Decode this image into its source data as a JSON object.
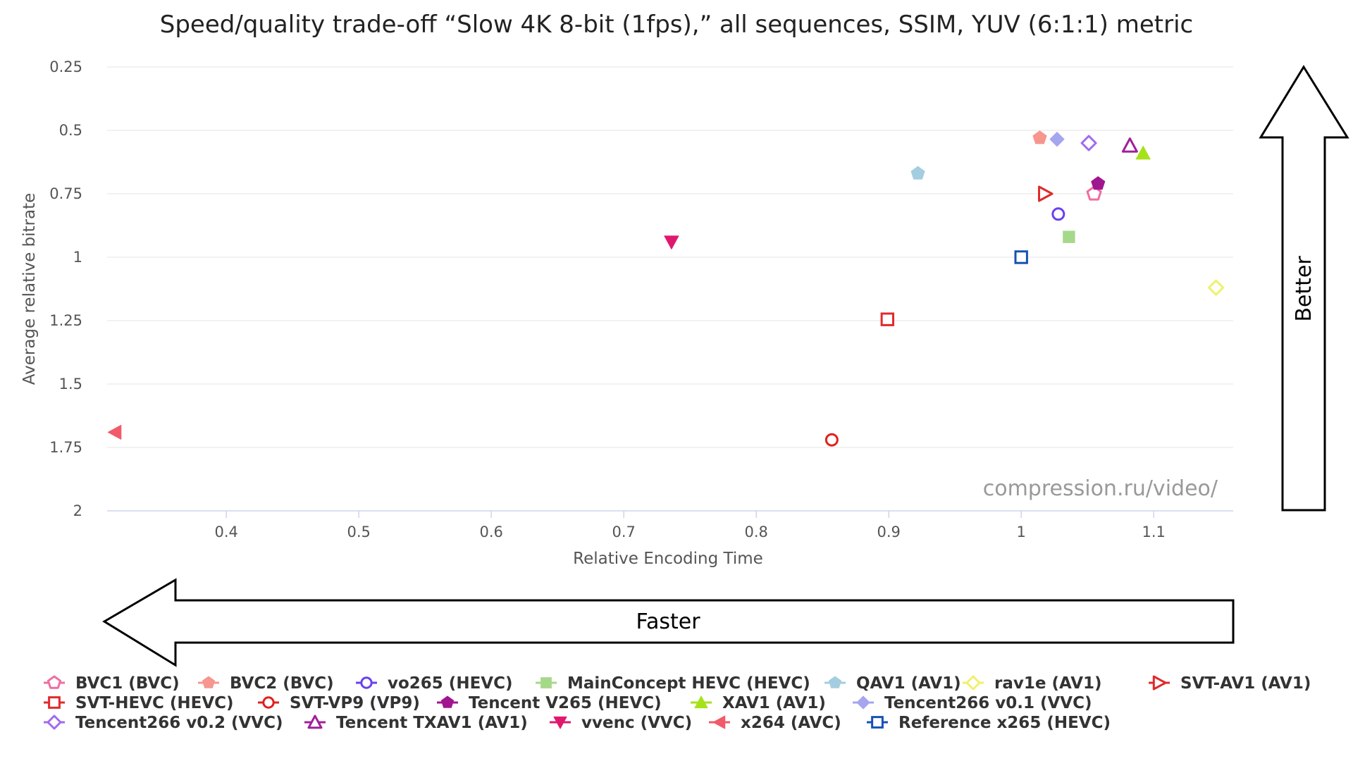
{
  "chart_data": {
    "type": "scatter",
    "title": "Speed/quality trade-off “Slow 4K 8-bit (1fps),” all sequences, SSIM, YUV (6:1:1) metric",
    "xlabel": "Relative Encoding Time",
    "ylabel": "Average relative bitrate",
    "xlim": [
      0.31,
      1.16
    ],
    "ylim": [
      0.25,
      2.0
    ],
    "y_reversed": true,
    "xticks": [
      "0.4",
      "0.5",
      "0.6",
      "0.7",
      "0.8",
      "0.9",
      "1",
      "1.1"
    ],
    "yticks": [
      "0.25",
      "0.5",
      "0.75",
      "1",
      "1.25",
      "1.5",
      "1.75",
      "2"
    ],
    "grid": true,
    "legend_position": "bottom",
    "watermark": "compression.ru/video/",
    "series": [
      {
        "name": "BVC1 (BVC)",
        "color": "#f06ea0",
        "marker": "pentagon",
        "filled": false,
        "x": 1.055,
        "y": 0.75
      },
      {
        "name": "BVC2 (BVC)",
        "color": "#f7958f",
        "marker": "pentagon",
        "filled": true,
        "x": 1.014,
        "y": 0.53
      },
      {
        "name": "vo265 (HEVC)",
        "color": "#6a3ff0",
        "marker": "circle",
        "filled": false,
        "x": 1.028,
        "y": 0.83
      },
      {
        "name": "MainConcept HEVC (HEVC)",
        "color": "#a6d88a",
        "marker": "square",
        "filled": true,
        "x": 1.036,
        "y": 0.92
      },
      {
        "name": "QAV1 (AV1)",
        "color": "#a4cde0",
        "marker": "pentagon",
        "filled": true,
        "x": 0.922,
        "y": 0.67
      },
      {
        "name": "rav1e (AV1)",
        "color": "#f1f06a",
        "marker": "diamond",
        "filled": false,
        "x": 1.147,
        "y": 1.12
      },
      {
        "name": "SVT-AV1 (AV1)",
        "color": "#e02b2b",
        "marker": "triangle-right",
        "filled": false,
        "x": 1.018,
        "y": 0.75
      },
      {
        "name": "SVT-HEVC (HEVC)",
        "color": "#e02b2b",
        "marker": "square",
        "filled": false,
        "x": 0.899,
        "y": 1.245
      },
      {
        "name": "SVT-VP9 (VP9)",
        "color": "#e0201f",
        "marker": "circle",
        "filled": false,
        "x": 0.857,
        "y": 1.72
      },
      {
        "name": "Tencent V265 (HEVC)",
        "color": "#a0168f",
        "marker": "pentagon",
        "filled": true,
        "x": 1.058,
        "y": 0.71
      },
      {
        "name": "XAV1 (AV1)",
        "color": "#a6e21a",
        "marker": "triangle-up",
        "filled": true,
        "x": 1.092,
        "y": 0.59
      },
      {
        "name": "Tencent266 v0.1 (VVC)",
        "color": "#a5a5f0",
        "marker": "diamond",
        "filled": true,
        "x": 1.027,
        "y": 0.535
      },
      {
        "name": "Tencent266 v0.2 (VVC)",
        "color": "#a06aef",
        "marker": "diamond",
        "filled": false,
        "x": 1.051,
        "y": 0.55
      },
      {
        "name": "Tencent TXAV1 (AV1)",
        "color": "#a0209a",
        "marker": "triangle-up",
        "filled": false,
        "x": 1.082,
        "y": 0.56
      },
      {
        "name": "vvenc (VVC)",
        "color": "#e0186e",
        "marker": "triangle-down",
        "filled": true,
        "x": 0.736,
        "y": 0.94
      },
      {
        "name": "x264 (AVC)",
        "color": "#f25a6a",
        "marker": "triangle-left",
        "filled": true,
        "x": 0.316,
        "y": 1.69
      },
      {
        "name": "Reference x265 (HEVC)",
        "color": "#1652b3",
        "marker": "square",
        "filled": false,
        "x": 1.0,
        "y": 1.0
      }
    ]
  },
  "arrows": {
    "faster_label": "Faster",
    "better_label": "Better"
  }
}
